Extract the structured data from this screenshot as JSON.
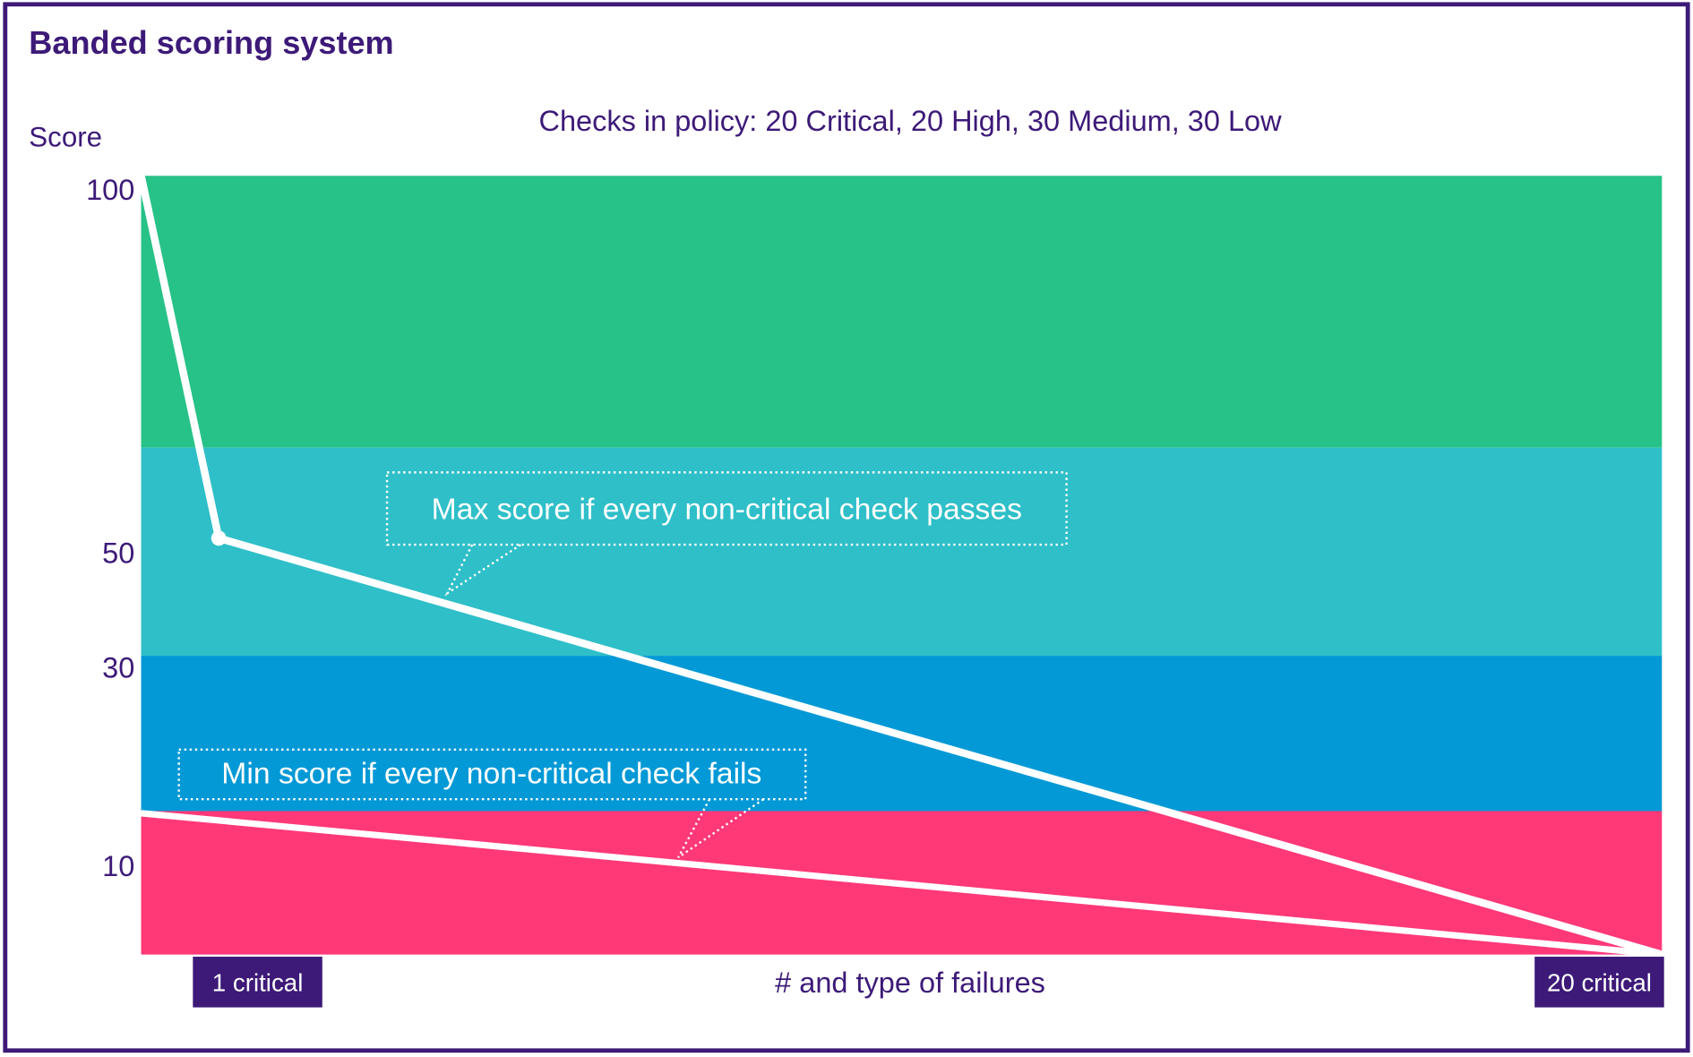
{
  "title": "Banded scoring system",
  "subtitle": "Checks in policy: 20 Critical, 20 High, 30 Medium, 30 Low",
  "y_axis_label": "Score",
  "y_tick_labels": [
    "100",
    "50",
    "30",
    "10"
  ],
  "callouts": [
    "Max score if every non-critical check passes",
    "Min score if every non-critical check fails"
  ],
  "x_axis": {
    "label": "# and type of failures",
    "start": "1 critical",
    "end": "20 critical"
  }
}
